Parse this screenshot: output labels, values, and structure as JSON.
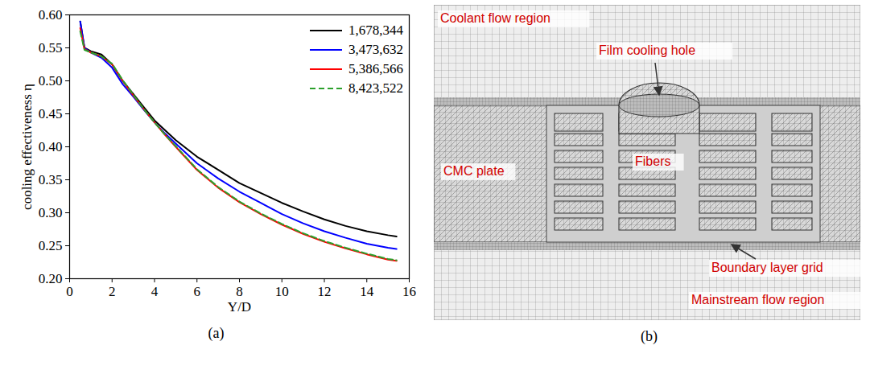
{
  "chart_data": {
    "type": "line",
    "title": "(a)",
    "x_label": "Y/D",
    "y_label": "cooling effectiveness η",
    "x": [
      0.5,
      0.7,
      1,
      1.5,
      2,
      2.5,
      3,
      3.5,
      4,
      4.5,
      5,
      6,
      7,
      8,
      9,
      10,
      11,
      12,
      13,
      14,
      15,
      15.4
    ],
    "series": [
      {
        "name": "1,678,344",
        "color": "#000000",
        "line_style": "solid",
        "values": [
          0.59,
          0.55,
          0.545,
          0.54,
          0.525,
          0.5,
          0.48,
          0.46,
          0.44,
          0.425,
          0.41,
          0.385,
          0.365,
          0.345,
          0.33,
          0.315,
          0.302,
          0.29,
          0.28,
          0.272,
          0.266,
          0.264
        ]
      },
      {
        "name": "3,473,632",
        "color": "#0000ff",
        "line_style": "solid",
        "values": [
          0.59,
          0.55,
          0.543,
          0.535,
          0.52,
          0.495,
          0.476,
          0.456,
          0.437,
          0.42,
          0.405,
          0.375,
          0.352,
          0.332,
          0.315,
          0.298,
          0.284,
          0.272,
          0.262,
          0.253,
          0.247,
          0.245
        ]
      },
      {
        "name": "5,386,566",
        "color": "#ff0000",
        "line_style": "solid",
        "values": [
          0.58,
          0.548,
          0.543,
          0.537,
          0.525,
          0.5,
          0.478,
          0.457,
          0.437,
          0.418,
          0.4,
          0.365,
          0.338,
          0.316,
          0.298,
          0.282,
          0.268,
          0.256,
          0.246,
          0.237,
          0.229,
          0.227
        ]
      },
      {
        "name": "8,423,522",
        "color": "#2ca02c",
        "line_style": "dashed",
        "values": [
          0.575,
          0.547,
          0.543,
          0.537,
          0.526,
          0.501,
          0.479,
          0.457,
          0.437,
          0.418,
          0.401,
          0.366,
          0.339,
          0.317,
          0.299,
          0.283,
          0.269,
          0.257,
          0.247,
          0.238,
          0.23,
          0.228
        ]
      }
    ],
    "xlim": [
      0,
      16
    ],
    "ylim": [
      0.2,
      0.6
    ],
    "xticks": [
      0,
      2,
      4,
      6,
      8,
      10,
      12,
      14,
      16
    ],
    "yticks": [
      {
        "value": 0.2,
        "label": "0.20"
      },
      {
        "value": 0.25,
        "label": "0.25"
      },
      {
        "value": 0.3,
        "label": "0.30"
      },
      {
        "value": 0.35,
        "label": "0.35"
      },
      {
        "value": 0.4,
        "label": "0.40"
      },
      {
        "value": 0.45,
        "label": "0.45"
      },
      {
        "value": 0.5,
        "label": "0.50"
      },
      {
        "value": 0.55,
        "label": "0.55"
      },
      {
        "value": 0.6,
        "label": "0.60"
      }
    ],
    "grid": false,
    "legend": "upper right"
  },
  "diagram": {
    "label": "(b)",
    "annotations": [
      "Coolant flow region",
      "Film cooling hole",
      "Fibers",
      "CMC plate",
      "Boundary layer grid",
      "Mainstream flow region"
    ]
  }
}
